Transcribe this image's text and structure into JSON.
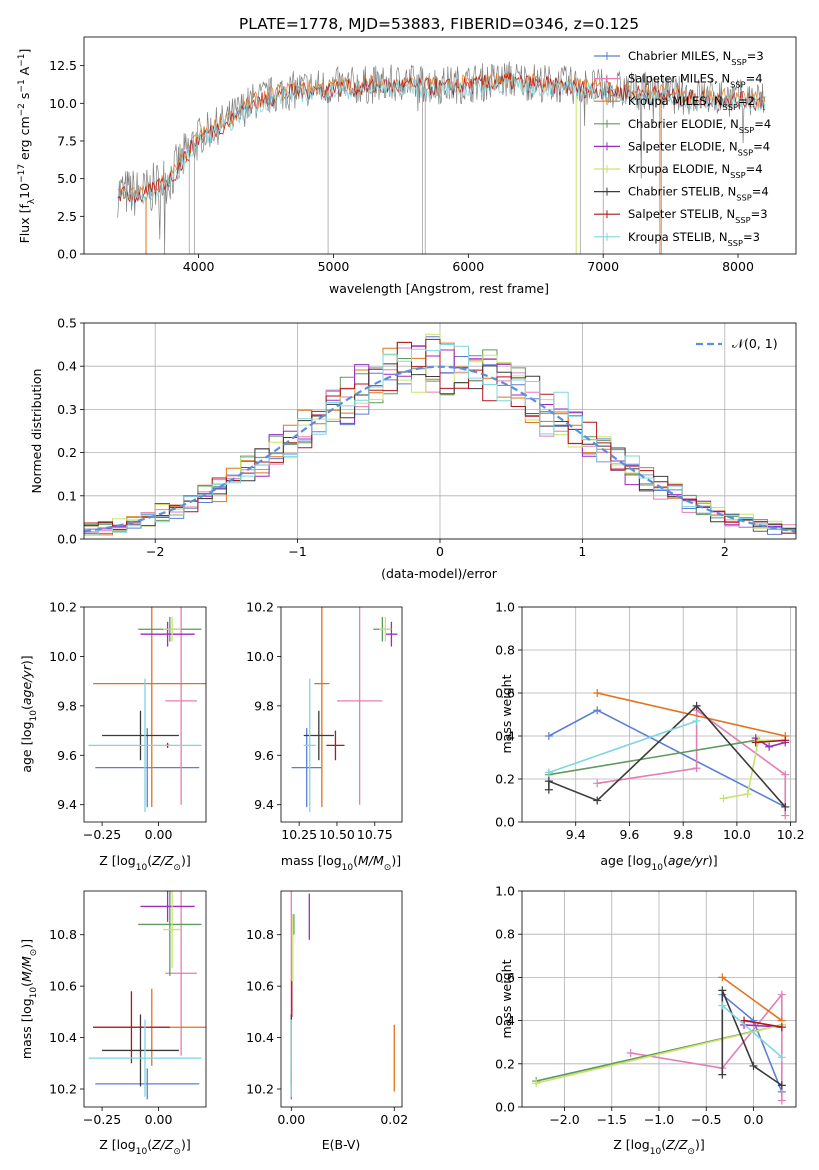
{
  "figure_title": "PLATE=1778, MJD=53883, FIBERID=0346, z=0.125",
  "colors": {
    "Chabrier MILES": "#5b7fd6",
    "Salpeter MILES": "#e37eb5",
    "Kroupa MILES": "#e0731c",
    "Chabrier ELODIE": "#5f9a5f",
    "Salpeter ELODIE": "#9a2bc4",
    "Kroupa ELODIE": "#c9e36a",
    "Chabrier STELIB": "#3b3b3b",
    "Salpeter STELIB": "#b0161c",
    "Kroupa STELIB": "#7fd6e0",
    "data": "#808080",
    "normal": "#5b8fd9"
  },
  "chart_data": [
    {
      "id": "spectrum",
      "type": "line",
      "xlabel": "wavelength [Angstrom, rest frame]",
      "ylabel": "Flux [fλ10⁻¹⁷ erg cm⁻² s⁻¹ A⁻¹]",
      "xlim": [
        3150,
        8430
      ],
      "ylim": [
        0,
        14.4
      ],
      "xticks": [
        4000,
        5000,
        6000,
        7000,
        8000
      ],
      "yticks": [
        0.0,
        2.5,
        5.0,
        7.5,
        10.0,
        12.5
      ],
      "legend_position": "top-right",
      "legend": [
        {
          "label": "Chabrier MILES, N_SSP=3",
          "base": "Chabrier MILES, N",
          "sub": "SSP",
          "tail": "=3"
        },
        {
          "label": "Salpeter MILES, N_SSP=4",
          "base": "Salpeter MILES, N",
          "sub": "SSP",
          "tail": "=4"
        },
        {
          "label": "Kroupa MILES, N_SSP=2",
          "base": "Kroupa MILES, N",
          "sub": "SSP",
          "tail": "=2"
        },
        {
          "label": "Chabrier ELODIE, N_SSP=4",
          "base": "Chabrier ELODIE, N",
          "sub": "SSP",
          "tail": "=4"
        },
        {
          "label": "Salpeter ELODIE, N_SSP=4",
          "base": "Salpeter ELODIE, N",
          "sub": "SSP",
          "tail": "=4"
        },
        {
          "label": "Kroupa ELODIE, N_SSP=4",
          "base": "Kroupa ELODIE, N",
          "sub": "SSP",
          "tail": "=4"
        },
        {
          "label": "Chabrier STELIB, N_SSP=4",
          "base": "Chabrier STELIB, N",
          "sub": "SSP",
          "tail": "=4"
        },
        {
          "label": "Salpeter STELIB, N_SSP=3",
          "base": "Salpeter STELIB, N",
          "sub": "SSP",
          "tail": "=3"
        },
        {
          "label": "Kroupa STELIB, N_SSP=3",
          "base": "Kroupa STELIB, N",
          "sub": "SSP",
          "tail": "=3"
        }
      ],
      "continuum": [
        [
          3400,
          4.1
        ],
        [
          3600,
          4.0
        ],
        [
          3800,
          5.2
        ],
        [
          4000,
          7.8
        ],
        [
          4200,
          8.8
        ],
        [
          4400,
          10.1
        ],
        [
          4600,
          10.7
        ],
        [
          4800,
          11.0
        ],
        [
          5000,
          11.1
        ],
        [
          5200,
          11.2
        ],
        [
          5500,
          11.3
        ],
        [
          5800,
          11.2
        ],
        [
          6000,
          11.3
        ],
        [
          6300,
          11.6
        ],
        [
          6600,
          11.3
        ],
        [
          7000,
          11.0
        ],
        [
          7300,
          10.8
        ],
        [
          7600,
          10.5
        ],
        [
          7900,
          10.4
        ],
        [
          8200,
          10.2
        ]
      ]
    },
    {
      "id": "residuals",
      "type": "histogram",
      "xlabel": "(data-model)/error",
      "ylabel": "Normed distribution",
      "xlim": [
        -2.5,
        2.5
      ],
      "ylim": [
        0,
        0.5
      ],
      "xticks": [
        -2,
        -1,
        0,
        1,
        2
      ],
      "yticks": [
        0.0,
        0.1,
        0.2,
        0.3,
        0.4,
        0.5
      ],
      "grid": true,
      "legend": "𝒩(0, 1)",
      "legend_position": "top-right",
      "bin_width": 0.1
    },
    {
      "id": "age_vs_Z",
      "type": "errorbar",
      "xlabel": "Z [log₁₀(Z/Z⊙)]",
      "ylabel": "age  [log₁₀(age/yr)]",
      "xlim": [
        -0.33,
        0.21
      ],
      "ylim": [
        9.33,
        10.2
      ],
      "xticks": [
        -0.25,
        0.0
      ],
      "xticklabels": [
        "−0.25",
        "0.00"
      ],
      "yticks": [
        9.4,
        9.6,
        9.8,
        10.0,
        10.2
      ],
      "yticklabels": [
        "9.4",
        "9.6",
        "9.8",
        "10.0",
        "10.2"
      ],
      "points": [
        {
          "s": "Chabrier MILES",
          "x": -0.05,
          "y": 9.55,
          "xe": 0.23,
          "ye": 0.16
        },
        {
          "s": "Salpeter MILES",
          "x": 0.1,
          "y": 9.82,
          "xe": 0.07,
          "ye": 0.42
        },
        {
          "s": "Kroupa MILES",
          "x": -0.03,
          "y": 9.89,
          "xe": 0.26,
          "ye": 0.5
        },
        {
          "s": "Chabrier ELODIE",
          "x": 0.05,
          "y": 10.11,
          "xe": 0.14,
          "ye": 0.05
        },
        {
          "s": "Salpeter ELODIE",
          "x": 0.04,
          "y": 10.09,
          "xe": 0.12,
          "ye": 0.05
        },
        {
          "s": "Kroupa ELODIE",
          "x": 0.06,
          "y": 10.11,
          "xe": 0.04,
          "ye": 0.05
        },
        {
          "s": "Chabrier STELIB",
          "x": -0.08,
          "y": 9.68,
          "xe": 0.17,
          "ye": 0.1
        },
        {
          "s": "Salpeter STELIB",
          "x": 0.04,
          "y": 9.64,
          "xe": 0.01,
          "ye": 0.01
        },
        {
          "s": "Kroupa STELIB",
          "x": -0.06,
          "y": 9.64,
          "xe": 0.25,
          "ye": 0.27
        }
      ]
    },
    {
      "id": "age_vs_mass",
      "type": "errorbar",
      "xlabel": "mass [log₁₀(M/M⊙)]",
      "ylabel": "",
      "xlim": [
        10.13,
        10.93
      ],
      "ylim": [
        9.33,
        10.2
      ],
      "xticks": [
        10.25,
        10.5,
        10.75
      ],
      "xticklabels": [
        "10.25",
        "10.50",
        "10.75"
      ],
      "yticks": [
        9.4,
        9.6,
        9.8,
        10.0,
        10.2
      ],
      "yticklabels": [
        "9.4",
        "9.6",
        "9.8",
        "10.0",
        "10.2"
      ],
      "points": [
        {
          "s": "Chabrier MILES",
          "x": 10.3,
          "y": 9.55,
          "xe": 0.1,
          "ye": 0.16
        },
        {
          "s": "Salpeter MILES",
          "x": 10.65,
          "y": 9.82,
          "xe": 0.15,
          "ye": 0.42
        },
        {
          "s": "Kroupa MILES",
          "x": 10.4,
          "y": 9.89,
          "xe": 0.05,
          "ye": 0.5
        },
        {
          "s": "Chabrier ELODIE",
          "x": 10.8,
          "y": 10.11,
          "xe": 0.06,
          "ye": 0.05
        },
        {
          "s": "Salpeter ELODIE",
          "x": 10.86,
          "y": 10.09,
          "xe": 0.04,
          "ye": 0.05
        },
        {
          "s": "Kroupa ELODIE",
          "x": 10.82,
          "y": 10.11,
          "xe": 0.04,
          "ye": 0.05
        },
        {
          "s": "Chabrier STELIB",
          "x": 10.38,
          "y": 9.68,
          "xe": 0.1,
          "ye": 0.1
        },
        {
          "s": "Salpeter STELIB",
          "x": 10.49,
          "y": 9.64,
          "xe": 0.06,
          "ye": 0.06
        },
        {
          "s": "Kroupa STELIB",
          "x": 10.32,
          "y": 9.64,
          "xe": 0.04,
          "ye": 0.27
        }
      ]
    },
    {
      "id": "mass_weight_vs_age",
      "type": "line",
      "xlabel": "age  [log₁₀(age/yr)]",
      "ylabel": "mass weight",
      "xlim": [
        9.2,
        10.22
      ],
      "ylim": [
        0,
        1.0
      ],
      "xticks": [
        9.4,
        9.6,
        9.8,
        10.0,
        10.2
      ],
      "xticklabels": [
        "9.4",
        "9.6",
        "9.8",
        "10.0",
        "10.2"
      ],
      "yticks": [
        0.0,
        0.2,
        0.4,
        0.6,
        0.8,
        1.0
      ],
      "yticklabels": [
        "0.0",
        "0.2",
        "0.4",
        "0.6",
        "0.8",
        "1.0"
      ],
      "grid": true,
      "series": [
        {
          "s": "Chabrier MILES",
          "x": [
            9.3,
            9.48,
            10.18
          ],
          "y": [
            0.4,
            0.52,
            0.07
          ]
        },
        {
          "s": "Salpeter MILES",
          "x": [
            9.48,
            9.85,
            9.85,
            10.18,
            10.18
          ],
          "y": [
            0.18,
            0.25,
            0.52,
            0.22,
            0.03
          ]
        },
        {
          "s": "Kroupa MILES",
          "x": [
            9.48,
            10.18
          ],
          "y": [
            0.6,
            0.4
          ]
        },
        {
          "s": "Chabrier ELODIE",
          "x": [
            9.3,
            10.07,
            10.18
          ],
          "y": [
            0.22,
            0.38,
            0.38
          ]
        },
        {
          "s": "Salpeter ELODIE",
          "x": [
            10.07,
            10.12,
            10.18
          ],
          "y": [
            0.39,
            0.35,
            0.37
          ]
        },
        {
          "s": "Kroupa ELODIE",
          "x": [
            9.95,
            10.04,
            10.08,
            10.18
          ],
          "y": [
            0.11,
            0.13,
            0.38,
            0.38
          ]
        },
        {
          "s": "Chabrier STELIB",
          "x": [
            9.3,
            9.3,
            9.48,
            9.85,
            10.18
          ],
          "y": [
            0.15,
            0.19,
            0.1,
            0.54,
            0.07
          ]
        },
        {
          "s": "Salpeter STELIB",
          "x": [
            10.07,
            10.18
          ],
          "y": [
            0.37,
            0.38
          ]
        },
        {
          "s": "Kroupa STELIB",
          "x": [
            9.3,
            9.85
          ],
          "y": [
            0.23,
            0.47
          ]
        }
      ]
    },
    {
      "id": "mass_vs_Z",
      "type": "errorbar",
      "xlabel": "Z [log₁₀(Z/Z⊙)]",
      "ylabel": "mass [log₁₀(M/M⊙)]",
      "xlim": [
        -0.33,
        0.21
      ],
      "ylim": [
        10.13,
        10.97
      ],
      "xticks": [
        -0.25,
        0.0
      ],
      "xticklabels": [
        "−0.25",
        "0.00"
      ],
      "yticks": [
        10.2,
        10.4,
        10.6,
        10.8
      ],
      "yticklabels": [
        "10.2",
        "10.4",
        "10.6",
        "10.8"
      ],
      "points": [
        {
          "s": "Chabrier MILES",
          "x": -0.05,
          "y": 10.22,
          "xe": 0.23,
          "ye": 0.06
        },
        {
          "s": "Salpeter MILES",
          "x": 0.1,
          "y": 10.65,
          "xe": 0.07,
          "ye": 0.32
        },
        {
          "s": "Kroupa MILES",
          "x": -0.03,
          "y": 10.44,
          "xe": 0.26,
          "ye": 0.15
        },
        {
          "s": "Chabrier ELODIE",
          "x": 0.05,
          "y": 10.84,
          "xe": 0.14,
          "ye": 0.2
        },
        {
          "s": "Salpeter ELODIE",
          "x": 0.04,
          "y": 10.91,
          "xe": 0.12,
          "ye": 0.06
        },
        {
          "s": "Kroupa ELODIE",
          "x": 0.06,
          "y": 10.82,
          "xe": 0.04,
          "ye": 0.15
        },
        {
          "s": "Chabrier STELIB",
          "x": -0.08,
          "y": 10.35,
          "xe": 0.17,
          "ye": 0.14
        },
        {
          "s": "Salpeter STELIB",
          "x": -0.12,
          "y": 10.44,
          "xe": 0.17,
          "ye": 0.14
        },
        {
          "s": "Kroupa STELIB",
          "x": -0.06,
          "y": 10.32,
          "xe": 0.25,
          "ye": 0.15
        }
      ]
    },
    {
      "id": "mass_vs_EBV",
      "type": "errorbar",
      "xlabel": "E(B-V)",
      "ylabel": "",
      "xlim": [
        -0.002,
        0.0215
      ],
      "ylim": [
        10.13,
        10.97
      ],
      "xticks": [
        0.0,
        0.02
      ],
      "xticklabels": [
        "0.00",
        "0.02"
      ],
      "yticks": [
        10.2,
        10.4,
        10.6,
        10.8
      ],
      "yticklabels": [
        "10.2",
        "10.4",
        "10.6",
        "10.8"
      ],
      "points": [
        {
          "s": "Chabrier MILES",
          "x": 0.0,
          "y": 10.22,
          "xe": 0,
          "ye": 0.06
        },
        {
          "s": "Salpeter MILES",
          "x": 0.0,
          "y": 10.65,
          "xe": 0,
          "ye": 0.32
        },
        {
          "s": "Kroupa MILES",
          "x": 0.02,
          "y": 10.32,
          "xe": 0,
          "ye": 0.13
        },
        {
          "s": "Chabrier ELODIE",
          "x": 0.0005,
          "y": 10.84,
          "xe": 0,
          "ye": 0.04
        },
        {
          "s": "Salpeter ELODIE",
          "x": 0.0035,
          "y": 10.87,
          "xe": 0,
          "ye": 0.09
        },
        {
          "s": "Kroupa ELODIE",
          "x": 0.0003,
          "y": 10.75,
          "xe": 0,
          "ye": 0.13
        },
        {
          "s": "Chabrier STELIB",
          "x": 0.0,
          "y": 10.35,
          "xe": 0,
          "ye": 0.14
        },
        {
          "s": "Salpeter STELIB",
          "x": 0.0001,
          "y": 10.55,
          "xe": 0,
          "ye": 0.07
        },
        {
          "s": "Kroupa STELIB",
          "x": 0.0,
          "y": 10.32,
          "xe": 0,
          "ye": 0.15
        }
      ]
    },
    {
      "id": "mass_weight_vs_Z",
      "type": "line",
      "xlabel": "Z [log₁₀(Z/Z⊙)]",
      "ylabel": "mass weight",
      "xlim": [
        -2.45,
        0.45
      ],
      "ylim": [
        0,
        1.0
      ],
      "xticks": [
        -2.0,
        -1.5,
        -1.0,
        -0.5,
        0.0
      ],
      "xticklabels": [
        "−2.0",
        "−1.5",
        "−1.0",
        "−0.5",
        "0.0"
      ],
      "yticks": [
        0.0,
        0.2,
        0.4,
        0.6,
        0.8,
        1.0
      ],
      "yticklabels": [
        "0.0",
        "0.2",
        "0.4",
        "0.6",
        "0.8",
        "1.0"
      ],
      "grid": true,
      "series": [
        {
          "s": "Chabrier MILES",
          "x": [
            -0.33,
            0.0,
            0.3
          ],
          "y": [
            0.52,
            0.4,
            0.07
          ]
        },
        {
          "s": "Salpeter MILES",
          "x": [
            -1.3,
            -0.33,
            0.3,
            0.3
          ],
          "y": [
            0.25,
            0.18,
            0.52,
            0.03
          ]
        },
        {
          "s": "Kroupa MILES",
          "x": [
            -0.33,
            0.3
          ],
          "y": [
            0.6,
            0.4
          ]
        },
        {
          "s": "Chabrier ELODIE",
          "x": [
            -2.3,
            0.3
          ],
          "y": [
            0.12,
            0.38
          ]
        },
        {
          "s": "Salpeter ELODIE",
          "x": [
            -0.1,
            0.3
          ],
          "y": [
            0.38,
            0.37
          ]
        },
        {
          "s": "Kroupa ELODIE",
          "x": [
            -2.3,
            0.3
          ],
          "y": [
            0.11,
            0.38
          ]
        },
        {
          "s": "Chabrier STELIB",
          "x": [
            -0.33,
            -0.33,
            0.0,
            0.3
          ],
          "y": [
            0.15,
            0.54,
            0.19,
            0.1
          ]
        },
        {
          "s": "Salpeter STELIB",
          "x": [
            -0.1,
            0.3
          ],
          "y": [
            0.4,
            0.37
          ]
        },
        {
          "s": "Kroupa STELIB",
          "x": [
            -0.33,
            0.3
          ],
          "y": [
            0.47,
            0.23
          ]
        }
      ]
    }
  ]
}
